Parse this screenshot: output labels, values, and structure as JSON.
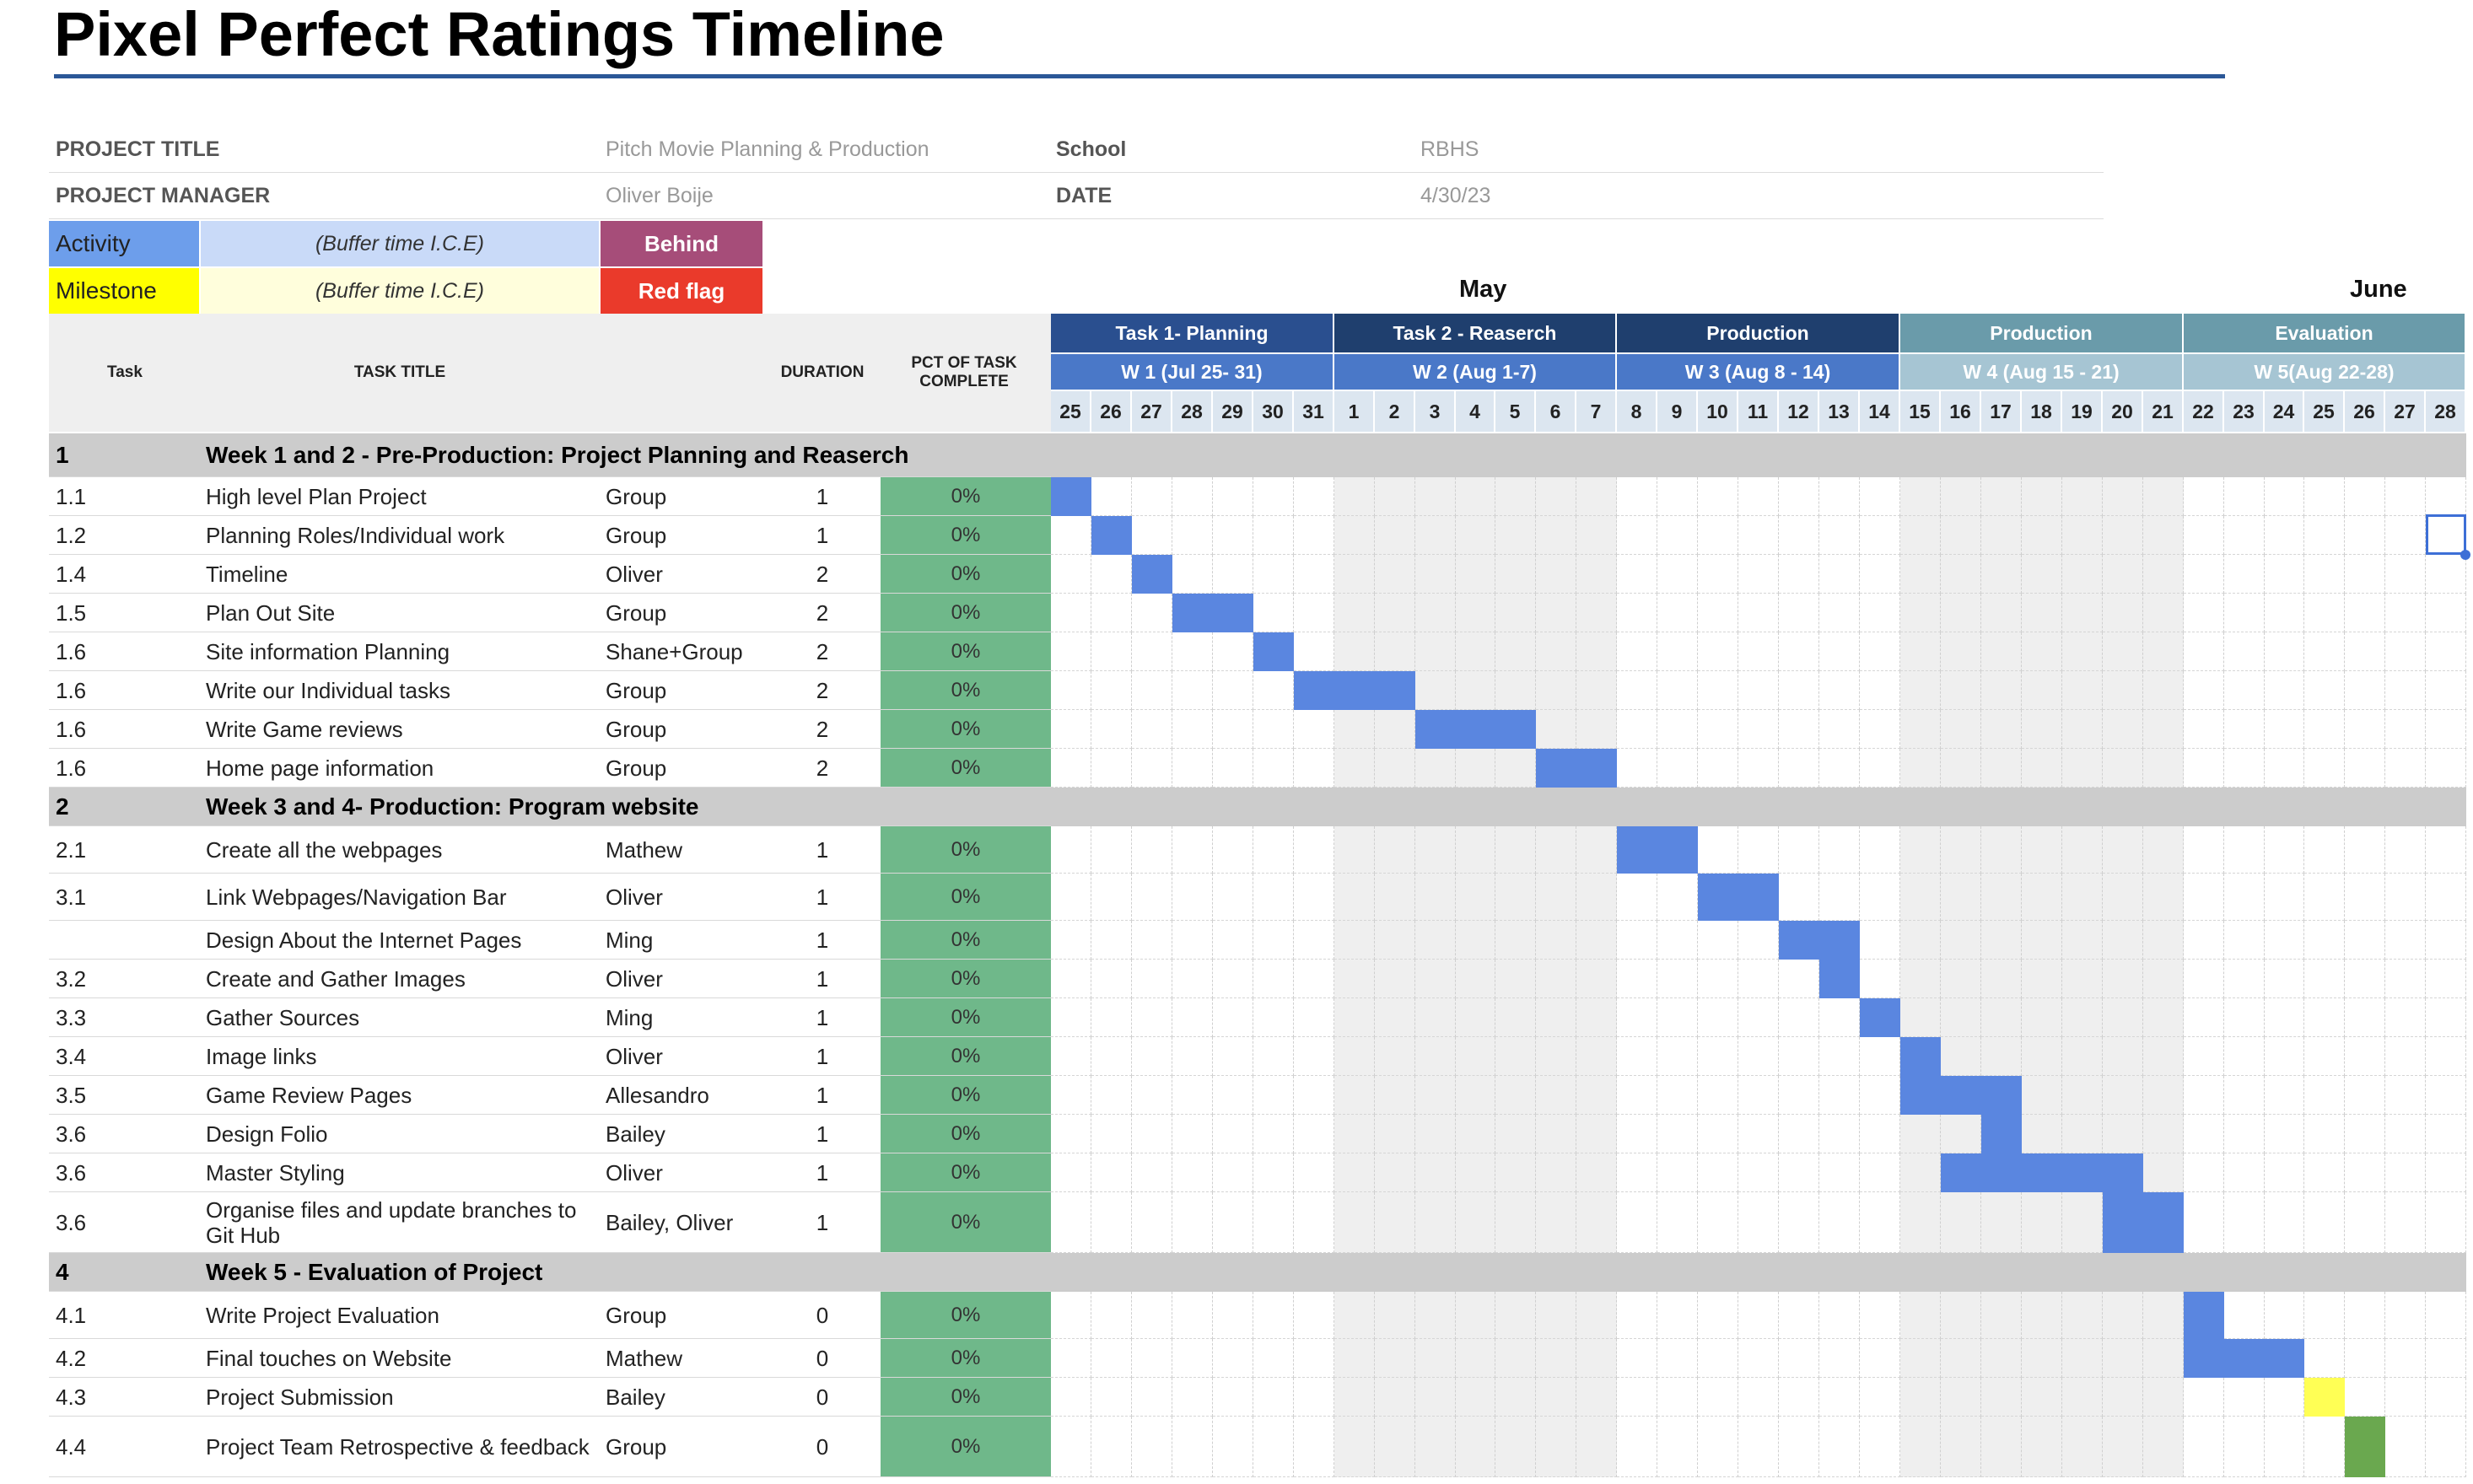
{
  "title": "Pixel Perfect Ratings Timeline",
  "header": {
    "project_title_label": "PROJECT TITLE",
    "project_title_value": "Pitch Movie Planning & Production",
    "school_label": "School",
    "school_value": "RBHS",
    "project_manager_label": "PROJECT MANAGER",
    "project_manager_value": "Oliver Boije",
    "date_label": "DATE",
    "date_value": "4/30/23"
  },
  "legend": {
    "activity": "Activity",
    "activity_buffer": "(Buffer time I.C.E)",
    "behind": "Behind",
    "milestone": "Milestone",
    "milestone_buffer": "(Buffer time I.C.E)",
    "red_flag": "Red flag",
    "colors": {
      "activity": "#6d9eeb",
      "activity_buffer": "#c9daf8",
      "behind": "#a64d79",
      "milestone": "#ffff00",
      "milestone_buffer": "#fffedc",
      "red_flag": "#ea3a2b"
    }
  },
  "months": [
    "May",
    "June"
  ],
  "columns": {
    "task": "Task",
    "task_title": "TASK TITLE",
    "duration": "DURATION",
    "pct": "PCT OF TASK COMPLETE"
  },
  "phases": [
    {
      "label": "Task 1- Planning",
      "color": "#2a4f8f"
    },
    {
      "label": "Task 2 - Reaserch",
      "color": "#1f3f6e"
    },
    {
      "label": "Production",
      "color": "#1f3f6e"
    },
    {
      "label": "Production",
      "color": "#6a9baa"
    },
    {
      "label": "Evaluation",
      "color": "#6a9baa"
    }
  ],
  "weeks": [
    {
      "label": "W 1 (Jul 25- 31)",
      "color": "#4a78c8"
    },
    {
      "label": "W 2 (Aug 1-7)",
      "color": "#4a78c8"
    },
    {
      "label": "W 3 (Aug 8 - 14)",
      "color": "#4a78c8"
    },
    {
      "label": "W 4 (Aug 15 - 21)",
      "color": "#a6c5d3"
    },
    {
      "label": "W 5(Aug 22-28)",
      "color": "#a6c5d3"
    }
  ],
  "days": [
    "25",
    "26",
    "27",
    "28",
    "29",
    "30",
    "31",
    "1",
    "2",
    "3",
    "4",
    "5",
    "6",
    "7",
    "8",
    "9",
    "10",
    "11",
    "12",
    "13",
    "14",
    "15",
    "16",
    "17",
    "18",
    "19",
    "20",
    "21",
    "22",
    "23",
    "24",
    "25",
    "26",
    "27",
    "28"
  ],
  "rows": [
    {
      "type": "section",
      "id": "1",
      "title": "Week 1 and 2 - Pre-Production: Project Planning and Reaserch"
    },
    {
      "type": "task",
      "id": "1.1",
      "title": "High level Plan Project",
      "owner": "Group",
      "duration": "1",
      "pct": "0%",
      "bar": [
        0
      ]
    },
    {
      "type": "task",
      "id": "1.2",
      "title": "Planning Roles/Individual work",
      "owner": "Group",
      "duration": "1",
      "pct": "0%",
      "bar": [
        1
      ]
    },
    {
      "type": "task",
      "id": "1.4",
      "title": "Timeline",
      "owner": "Oliver",
      "duration": "2",
      "pct": "0%",
      "bar": [
        2
      ]
    },
    {
      "type": "task",
      "id": "1.5",
      "title": "Plan Out Site",
      "owner": "Group",
      "duration": "2",
      "pct": "0%",
      "bar": [
        3,
        4
      ]
    },
    {
      "type": "task",
      "id": "1.6",
      "title": "Site information Planning",
      "owner": "Shane+Group",
      "duration": "2",
      "pct": "0%",
      "bar": [
        5
      ]
    },
    {
      "type": "task",
      "id": "1.6",
      "title": "Write our Individual tasks",
      "owner": "Group",
      "duration": "2",
      "pct": "0%",
      "bar": [
        6,
        7,
        8
      ]
    },
    {
      "type": "task",
      "id": "1.6",
      "title": "Write Game reviews",
      "owner": "Group",
      "duration": "2",
      "pct": "0%",
      "bar": [
        9,
        10,
        11
      ]
    },
    {
      "type": "task",
      "id": "1.6",
      "title": "Home page information",
      "owner": "Group",
      "duration": "2",
      "pct": "0%",
      "bar": [
        12,
        13
      ]
    },
    {
      "type": "section",
      "id": "2",
      "title": "Week 3 and 4- Production: Program website"
    },
    {
      "type": "task",
      "id": "2.1",
      "title": "Create all the webpages",
      "owner": "Mathew",
      "duration": "1",
      "pct": "0%",
      "bar": [
        14,
        15
      ]
    },
    {
      "type": "task",
      "id": "3.1",
      "title": "Link Webpages/Navigation Bar",
      "owner": "Oliver",
      "duration": "1",
      "pct": "0%",
      "bar": [
        16,
        17
      ]
    },
    {
      "type": "task",
      "id": "",
      "title": "Design About the Internet Pages",
      "owner": "Ming",
      "duration": "1",
      "pct": "0%",
      "bar": [
        18,
        19
      ]
    },
    {
      "type": "task",
      "id": "3.2",
      "title": "Create and Gather Images",
      "owner": "Oliver",
      "duration": "1",
      "pct": "0%",
      "bar": [
        19
      ]
    },
    {
      "type": "task",
      "id": "3.3",
      "title": "Gather Sources",
      "owner": "Ming",
      "duration": "1",
      "pct": "0%",
      "bar": [
        20
      ]
    },
    {
      "type": "task",
      "id": "3.4",
      "title": "Image links",
      "owner": "Oliver",
      "duration": "1",
      "pct": "0%",
      "bar": [
        21
      ]
    },
    {
      "type": "task",
      "id": "3.5",
      "title": "Game Review Pages",
      "owner": "Allesandro",
      "duration": "1",
      "pct": "0%",
      "bar": [
        21,
        22,
        23
      ]
    },
    {
      "type": "task",
      "id": "3.6",
      "title": "Design Folio",
      "owner": "Bailey",
      "duration": "1",
      "pct": "0%",
      "bar": [
        23
      ]
    },
    {
      "type": "task",
      "id": "3.6",
      "title": "Master Styling",
      "owner": "Oliver",
      "duration": "1",
      "pct": "0%",
      "bar": [
        22,
        23,
        24,
        25,
        26
      ]
    },
    {
      "type": "task",
      "id": "3.6",
      "title": "Organise files and update branches to Git Hub",
      "owner": "Bailey, Oliver",
      "duration": "1",
      "pct": "0%",
      "bar": [
        26,
        27
      ]
    },
    {
      "type": "section",
      "id": "4",
      "title": "Week 5 - Evaluation of Project"
    },
    {
      "type": "task",
      "id": "4.1",
      "title": "Write Project Evaluation",
      "owner": "Group",
      "duration": "0",
      "pct": "0%",
      "bar": [
        28
      ]
    },
    {
      "type": "task",
      "id": "4.2",
      "title": "Final touches on Website",
      "owner": "Mathew",
      "duration": "0",
      "pct": "0%",
      "bar": [
        28,
        29,
        30
      ]
    },
    {
      "type": "task",
      "id": "4.3",
      "title": "Project Submission",
      "owner": "Bailey",
      "duration": "0",
      "pct": "0%",
      "milestone": [
        31
      ]
    },
    {
      "type": "task",
      "id": "4.4",
      "title": "Project Team Retrospective & feedback",
      "owner": "Group",
      "duration": "0",
      "pct": "0%",
      "done": [
        32
      ]
    }
  ]
}
